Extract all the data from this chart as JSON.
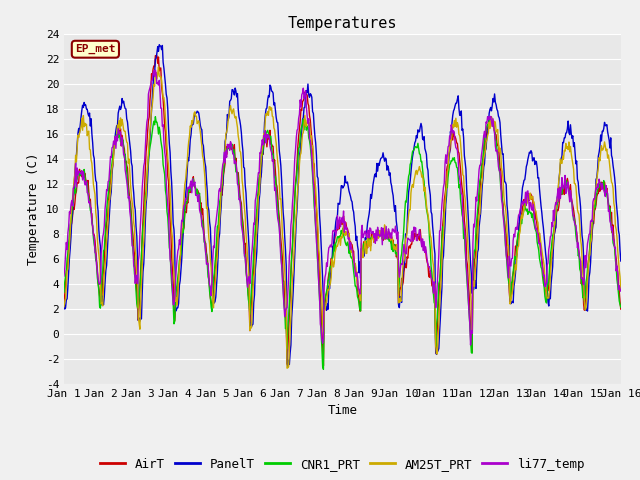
{
  "title": "Temperatures",
  "xlabel": "Time",
  "ylabel": "Temperature (C)",
  "ylim": [
    -4,
    24
  ],
  "xlim": [
    0,
    15
  ],
  "xtick_positions": [
    0,
    1,
    2,
    3,
    4,
    5,
    6,
    7,
    8,
    9,
    10,
    11,
    12,
    13,
    14,
    15
  ],
  "xtick_labels": [
    "Jan 1",
    "Jan 2",
    "Jan 3",
    "Jan 4",
    "Jan 5",
    "Jan 6",
    "Jan 7",
    "Jan 8",
    "Jan 9",
    "Jan 10",
    "Jan 11",
    "Jan 12",
    "Jan 13",
    "Jan 14",
    "Jan 15",
    "Jan 16"
  ],
  "ytick_positions": [
    -4,
    -2,
    0,
    2,
    4,
    6,
    8,
    10,
    12,
    14,
    16,
    18,
    20,
    22,
    24
  ],
  "series_colors": {
    "AirT": "#cc0000",
    "PanelT": "#0000cc",
    "CNR1_PRT": "#00cc00",
    "AM25T_PRT": "#ccaa00",
    "li77_temp": "#aa00cc"
  },
  "annotation_text": "EP_met",
  "background_color": "#f0f0f0",
  "plot_bg_color": "#e8e8e8",
  "title_fontsize": 11,
  "axis_fontsize": 9,
  "tick_fontsize": 8,
  "legend_fontsize": 9,
  "linewidth": 1.0,
  "grid_color": "#ffffff",
  "n_points": 720,
  "daily_min_base": [
    2.5,
    2.5,
    1.0,
    2.0,
    2.5,
    0.5,
    -2.5,
    2.0,
    6.5,
    2.5,
    -1.5,
    4.0,
    2.5,
    3.0,
    2.0
  ],
  "daily_max_AirT": [
    13,
    16,
    22,
    12,
    15,
    16,
    19,
    9,
    8,
    8,
    16,
    17,
    11,
    12,
    12
  ],
  "daily_max_PanelT": [
    18.5,
    18.5,
    23,
    17.5,
    19.5,
    19.5,
    19.5,
    12,
    14,
    16.5,
    18.5,
    18.5,
    14.5,
    16.5,
    16.5
  ],
  "daily_max_CNR1": [
    13,
    16,
    17,
    12,
    15,
    16,
    17,
    8,
    8,
    15,
    14,
    17,
    10,
    12,
    12
  ],
  "daily_max_AM25T": [
    17,
    17,
    21,
    17.5,
    18,
    18,
    17,
    8,
    8,
    13,
    17,
    17,
    11,
    15,
    15
  ],
  "daily_max_li77": [
    13,
    16,
    21,
    12,
    15,
    16,
    19,
    9,
    8,
    8,
    16,
    17,
    11,
    12,
    12
  ]
}
